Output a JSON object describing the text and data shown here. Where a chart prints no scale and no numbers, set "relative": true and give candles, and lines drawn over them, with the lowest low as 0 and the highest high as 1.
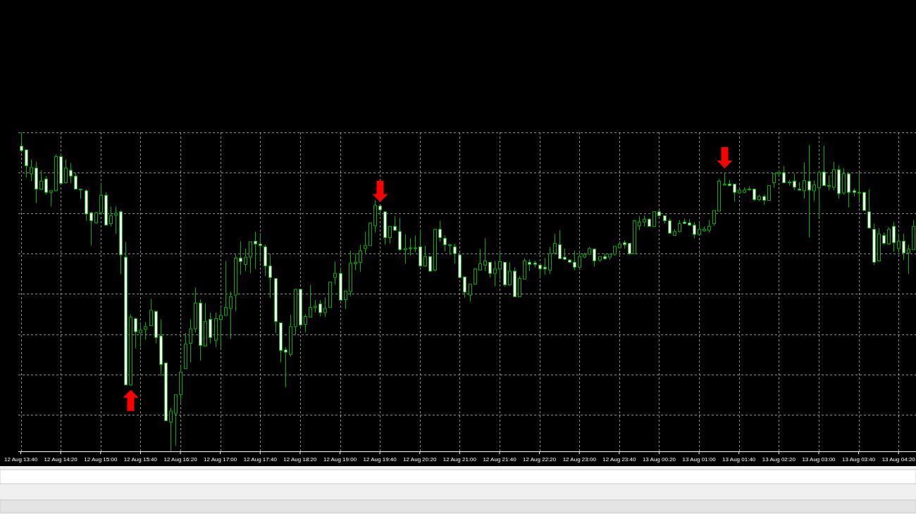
{
  "chart_data": {
    "type": "candlestick",
    "relative": true,
    "grid": true,
    "categories": [
      "12 Aug 13:40",
      null,
      null,
      null,
      null,
      null,
      null,
      null,
      "12 Aug 14:20",
      null,
      null,
      null,
      null,
      null,
      null,
      null,
      "12 Aug 15:00",
      null,
      null,
      null,
      null,
      null,
      null,
      null,
      "12 Aug 15:40",
      null,
      null,
      null,
      null,
      null,
      null,
      null,
      "12 Aug 16:20",
      null,
      null,
      null,
      null,
      null,
      null,
      null,
      "12 Aug 17:00",
      null,
      null,
      null,
      null,
      null,
      null,
      null,
      "12 Aug 17:40",
      null,
      null,
      null,
      null,
      null,
      null,
      null,
      "12 Aug 18:20",
      null,
      null,
      null,
      null,
      null,
      null,
      null,
      "12 Aug 19:00",
      null,
      null,
      null,
      null,
      null,
      null,
      null,
      "12 Aug 19:40",
      null,
      null,
      null,
      null,
      null,
      null,
      null,
      "12 Aug 20:20",
      null,
      null,
      null,
      null,
      null,
      null,
      null,
      "12 Aug 21:00",
      null,
      null,
      null,
      null,
      null,
      null,
      null,
      "12 Aug 21:40",
      null,
      null,
      null,
      null,
      null,
      null,
      null,
      "12 Aug 22:20",
      null,
      null,
      null,
      null,
      null,
      null,
      null,
      "12 Aug 23:00",
      null,
      null,
      null,
      null,
      null,
      null,
      null,
      "12 Aug 23:40",
      null,
      null,
      null,
      null,
      null,
      null,
      null,
      "13 Aug 00:20",
      null,
      null,
      null,
      null,
      null,
      null,
      null,
      "13 Aug 01:00",
      null,
      null,
      null,
      null,
      null,
      null,
      null,
      "13 Aug 01:40",
      null,
      null,
      null,
      null,
      null,
      null,
      null,
      "13 Aug 02:20",
      null,
      null,
      null,
      null,
      null,
      null,
      null,
      "13 Aug 03:00",
      null,
      null,
      null,
      null,
      null,
      null,
      null,
      "13 Aug 03:40",
      null,
      null,
      null,
      null,
      null,
      null,
      null,
      "13 Aug 04:20",
      null,
      null,
      null
    ],
    "ohlc": [
      [
        0.957,
        1,
        0.938,
        0.943
      ],
      [
        0.945,
        0.947,
        0.858,
        0.895
      ],
      [
        0.87,
        0.915,
        0.847,
        0.89
      ],
      [
        0.888,
        0.908,
        0.778,
        0.822
      ],
      [
        0.822,
        0.881,
        0.819,
        0.847
      ],
      [
        0.854,
        0.863,
        0.805,
        0.812
      ],
      [
        0.812,
        0.819,
        0.767,
        0.817
      ],
      [
        0.817,
        0.931,
        0.815,
        0.924
      ],
      [
        0.924,
        0.934,
        0.835,
        0.84
      ],
      [
        0.842,
        0.915,
        0.84,
        0.888
      ],
      [
        0.881,
        0.904,
        0.84,
        0.863
      ],
      [
        0.863,
        0.874,
        0.822,
        0.822
      ],
      [
        0.821,
        0.823,
        0.792,
        0.822
      ],
      [
        0.817,
        0.822,
        0.723,
        0.744
      ],
      [
        0.748,
        0.751,
        0.645,
        0.723
      ],
      [
        0.716,
        0.751,
        0.714,
        0.748
      ],
      [
        0.748,
        0.842,
        0.746,
        0.803
      ],
      [
        0.803,
        0.812,
        0.709,
        0.709
      ],
      [
        0.714,
        0.767,
        0.705,
        0.739
      ],
      [
        0.741,
        0.767,
        0.682,
        0.746
      ],
      [
        0.751,
        0.755,
        0.556,
        0.616
      ],
      [
        0.609,
        0.657,
        0.208,
        0.208
      ],
      [
        0.208,
        0.43,
        0.206,
        0.421
      ],
      [
        0.416,
        0.419,
        0.323,
        0.375
      ],
      [
        0.371,
        0.405,
        0.327,
        0.38
      ],
      [
        0.382,
        0.405,
        0.35,
        0.391
      ],
      [
        0.394,
        0.478,
        0.394,
        0.442
      ],
      [
        0.439,
        0.439,
        0.339,
        0.357
      ],
      [
        0.362,
        0.414,
        0.236,
        0.272
      ],
      [
        0.277,
        0.277,
        0.096,
        0.096
      ],
      [
        0.092,
        0.137,
        0,
        0.126
      ],
      [
        0.119,
        0.178,
        0.018,
        0.178
      ],
      [
        0.178,
        0.268,
        0.149,
        0.249
      ],
      [
        0.259,
        0.371,
        0.259,
        0.336
      ],
      [
        0.339,
        0.414,
        0.279,
        0.384
      ],
      [
        0.384,
        0.513,
        0.373,
        0.465
      ],
      [
        0.465,
        0.476,
        0.284,
        0.332
      ],
      [
        0.33,
        0.465,
        0.33,
        0.407
      ],
      [
        0.414,
        0.435,
        0.339,
        0.357
      ],
      [
        0.348,
        0.435,
        0.327,
        0.416
      ],
      [
        0.414,
        0.448,
        0.325,
        0.426
      ],
      [
        0.426,
        0.597,
        0.426,
        0.451
      ],
      [
        0.448,
        0.501,
        0.352,
        0.485
      ],
      [
        0.49,
        0.62,
        0.439,
        0.606
      ],
      [
        0.606,
        0.659,
        0.554,
        0.595
      ],
      [
        0.586,
        0.636,
        0.565,
        0.609
      ],
      [
        0.609,
        0.657,
        0.558,
        0.657
      ],
      [
        0.659,
        0.689,
        0.572,
        0.65
      ],
      [
        0.65,
        0.684,
        0.593,
        0.645
      ],
      [
        0.641,
        0.648,
        0.549,
        0.581
      ],
      [
        0.581,
        0.62,
        0.481,
        0.545
      ],
      [
        0.542,
        0.542,
        0.371,
        0.407
      ],
      [
        0.403,
        0.403,
        0.279,
        0.316
      ],
      [
        0.318,
        0.327,
        0.201,
        0.311
      ],
      [
        0.304,
        0.428,
        0.297,
        0.391
      ],
      [
        0.391,
        0.51,
        0.366,
        0.508
      ],
      [
        0.508,
        0.508,
        0.384,
        0.396
      ],
      [
        0.398,
        0.43,
        0.373,
        0.423
      ],
      [
        0.421,
        0.522,
        0.421,
        0.451
      ],
      [
        0.451,
        0.474,
        0.435,
        0.455
      ],
      [
        0.462,
        0.474,
        0.423,
        0.435
      ],
      [
        0.435,
        0.483,
        0.421,
        0.448
      ],
      [
        0.451,
        0.531,
        0.451,
        0.531
      ],
      [
        0.545,
        0.595,
        0.522,
        0.558
      ],
      [
        0.558,
        0.577,
        0.474,
        0.474
      ],
      [
        0.476,
        0.503,
        0.446,
        0.503
      ],
      [
        0.501,
        0.629,
        0.487,
        0.59
      ],
      [
        0.588,
        0.62,
        0.568,
        0.593
      ],
      [
        0.593,
        0.648,
        0.563,
        0.629
      ],
      [
        0.636,
        0.689,
        0.618,
        0.645
      ],
      [
        0.645,
        0.716,
        0.645,
        0.716
      ],
      [
        0.707,
        0.787,
        0.686,
        0.771
      ],
      [
        0.769,
        0.769,
        0.739,
        0.757
      ],
      [
        0.751,
        0.751,
        0.648,
        0.67
      ],
      [
        0.67,
        0.705,
        0.652,
        0.705
      ],
      [
        0.705,
        0.737,
        0.693,
        0.693
      ],
      [
        0.689,
        0.732,
        0.629,
        0.632
      ],
      [
        0.632,
        0.68,
        0.588,
        0.636
      ],
      [
        0.636,
        0.668,
        0.613,
        0.638
      ],
      [
        0.636,
        0.677,
        0.625,
        0.638
      ],
      [
        0.641,
        0.696,
        0.579,
        0.581
      ],
      [
        0.581,
        0.645,
        0.579,
        0.611
      ],
      [
        0.611,
        0.611,
        0.563,
        0.565
      ],
      [
        0.568,
        0.698,
        0.565,
        0.696
      ],
      [
        0.696,
        0.723,
        0.657,
        0.67
      ],
      [
        0.668,
        0.677,
        0.627,
        0.648
      ],
      [
        0.645,
        0.65,
        0.616,
        0.648
      ],
      [
        0.641,
        0.65,
        0.588,
        0.62
      ],
      [
        0.616,
        0.618,
        0.545,
        0.545
      ],
      [
        0.547,
        0.547,
        0.481,
        0.499
      ],
      [
        0.49,
        0.526,
        0.469,
        0.524
      ],
      [
        0.524,
        0.574,
        0.522,
        0.572
      ],
      [
        0.568,
        0.634,
        0.568,
        0.588
      ],
      [
        0.584,
        0.668,
        0.565,
        0.597
      ],
      [
        0.593,
        0.593,
        0.545,
        0.558
      ],
      [
        0.558,
        0.597,
        0.517,
        0.572
      ],
      [
        0.572,
        0.625,
        0.538,
        0.595
      ],
      [
        0.593,
        0.593,
        0.517,
        0.522
      ],
      [
        0.522,
        0.593,
        0.519,
        0.565
      ],
      [
        0.565,
        0.577,
        0.483,
        0.485
      ],
      [
        0.485,
        0.549,
        0.483,
        0.542
      ],
      [
        0.54,
        0.606,
        0.54,
        0.597
      ],
      [
        0.593,
        0.602,
        0.565,
        0.586
      ],
      [
        0.59,
        0.597,
        0.577,
        0.586
      ],
      [
        0.584,
        0.59,
        0.545,
        0.572
      ],
      [
        0.577,
        0.606,
        0.554,
        0.572
      ],
      [
        0.568,
        0.641,
        0.556,
        0.62
      ],
      [
        0.622,
        0.682,
        0.616,
        0.652
      ],
      [
        0.648,
        0.693,
        0.604,
        0.604
      ],
      [
        0.609,
        0.636,
        0.6,
        0.602
      ],
      [
        0.6,
        0.602,
        0.59,
        0.593
      ],
      [
        0.593,
        0.629,
        0.568,
        0.577
      ],
      [
        0.577,
        0.625,
        0.568,
        0.611
      ],
      [
        0.609,
        0.622,
        0.606,
        0.618
      ],
      [
        0.618,
        0.641,
        0.616,
        0.636
      ],
      [
        0.634,
        0.636,
        0.579,
        0.597
      ],
      [
        0.6,
        0.611,
        0.593,
        0.611
      ],
      [
        0.611,
        0.62,
        0.6,
        0.604
      ],
      [
        0.609,
        0.618,
        0.6,
        0.618
      ],
      [
        0.618,
        0.643,
        0.613,
        0.643
      ],
      [
        0.638,
        0.659,
        0.636,
        0.65
      ],
      [
        0.654,
        0.661,
        0.636,
        0.648
      ],
      [
        0.652,
        0.654,
        0.616,
        0.62
      ],
      [
        0.62,
        0.725,
        0.62,
        0.723
      ],
      [
        0.707,
        0.737,
        0.693,
        0.719
      ],
      [
        0.719,
        0.739,
        0.705,
        0.728
      ],
      [
        0.728,
        0.73,
        0.705,
        0.705
      ],
      [
        0.705,
        0.753,
        0.705,
        0.751
      ],
      [
        0.751,
        0.755,
        0.737,
        0.739
      ],
      [
        0.739,
        0.739,
        0.714,
        0.723
      ],
      [
        0.723,
        0.73,
        0.682,
        0.684
      ],
      [
        0.677,
        0.696,
        0.675,
        0.689
      ],
      [
        0.689,
        0.725,
        0.686,
        0.714
      ],
      [
        0.719,
        0.73,
        0.714,
        0.714
      ],
      [
        0.716,
        0.728,
        0.707,
        0.709
      ],
      [
        0.709,
        0.719,
        0.668,
        0.68
      ],
      [
        0.68,
        0.719,
        0.68,
        0.696
      ],
      [
        0.691,
        0.705,
        0.689,
        0.696
      ],
      [
        0.693,
        0.725,
        0.686,
        0.705
      ],
      [
        0.714,
        0.755,
        0.707,
        0.755
      ],
      [
        0.753,
        0.854,
        0.753,
        0.847
      ],
      [
        0.835,
        0.874,
        0.833,
        0.838
      ],
      [
        0.838,
        0.851,
        0.831,
        0.833
      ],
      [
        0.838,
        0.838,
        0.783,
        0.812
      ],
      [
        0.81,
        0.824,
        0.808,
        0.819
      ],
      [
        0.812,
        0.828,
        0.81,
        0.819
      ],
      [
        0.821,
        0.831,
        0.817,
        0.822
      ],
      [
        0.822,
        0.824,
        0.785,
        0.789
      ],
      [
        0.789,
        0.805,
        0.785,
        0.799
      ],
      [
        0.799,
        0.805,
        0.773,
        0.787
      ],
      [
        0.787,
        0.833,
        0.785,
        0.833
      ],
      [
        0.842,
        0.872,
        0.826,
        0.87
      ],
      [
        0.87,
        0.881,
        0.865,
        0.874
      ],
      [
        0.874,
        0.895,
        0.84,
        0.842
      ],
      [
        0.842,
        0.851,
        0.833,
        0.844
      ],
      [
        0.847,
        0.87,
        0.819,
        0.828
      ],
      [
        0.822,
        0.844,
        0.819,
        0.819
      ],
      [
        0.817,
        0.906,
        0.792,
        0.849
      ],
      [
        0.847,
        0.961,
        0.67,
        0.819
      ],
      [
        0.817,
        0.849,
        0.785,
        0.835
      ],
      [
        0.826,
        0.881,
        0.732,
        0.874
      ],
      [
        0.876,
        0.959,
        0.833,
        0.833
      ],
      [
        0.831,
        0.865,
        0.819,
        0.833
      ],
      [
        0.828,
        0.908,
        0.819,
        0.883
      ],
      [
        0.883,
        0.897,
        0.792,
        0.808
      ],
      [
        0.81,
        0.888,
        0.805,
        0.87
      ],
      [
        0.87,
        0.87,
        0.764,
        0.812
      ],
      [
        0.817,
        0.824,
        0.799,
        0.812
      ],
      [
        0.81,
        0.874,
        0.778,
        0.812
      ],
      [
        0.812,
        0.812,
        0.755,
        0.755
      ],
      [
        0.751,
        0.822,
        0.7,
        0.7
      ],
      [
        0.696,
        0.714,
        0.584,
        0.593
      ],
      [
        0.597,
        0.7,
        0.595,
        0.682
      ],
      [
        0.677,
        0.686,
        0.648,
        0.652
      ],
      [
        0.65,
        0.703,
        0.648,
        0.696
      ],
      [
        0.705,
        0.719,
        0.625,
        0.654
      ],
      [
        0.636,
        0.682,
        0.622,
        0.659
      ],
      [
        0.659,
        0.682,
        0.6,
        0.622
      ],
      [
        0.622,
        0.648,
        0.556,
        0.634
      ],
      [
        0.632,
        0.725,
        0.632,
        0.705
      ]
    ]
  }
}
